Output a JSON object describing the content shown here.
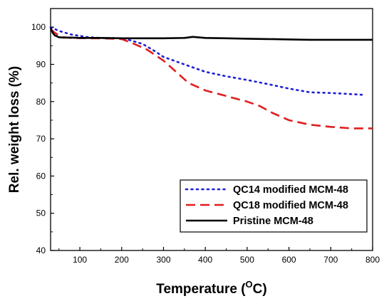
{
  "chart_data": {
    "type": "line",
    "xlabel": "Temperature",
    "xlabel_unit": "(OC)",
    "ylabel": "Rel. weight loss (%)",
    "xlim": [
      30,
      800
    ],
    "ylim": [
      40,
      105
    ],
    "xticks": [
      100,
      200,
      300,
      400,
      500,
      600,
      700,
      800
    ],
    "yticks": [
      40,
      50,
      60,
      70,
      80,
      90,
      100
    ],
    "grid": false,
    "legend_position": "bottom-right",
    "series": [
      {
        "name": "QC14 modified MCM-48",
        "color": "#1f1fd6",
        "line_style": "dotted",
        "x": [
          30,
          50,
          80,
          120,
          150,
          200,
          220,
          250,
          280,
          300,
          350,
          400,
          450,
          500,
          550,
          600,
          650,
          700,
          750,
          780
        ],
        "y": [
          100,
          99,
          98,
          97.3,
          97.1,
          97,
          96.5,
          95.5,
          93.5,
          92,
          90,
          88,
          86.8,
          85.8,
          84.7,
          83.5,
          82.5,
          82.3,
          82,
          81.8
        ]
      },
      {
        "name": "QC18 modified MCM-48",
        "color": "#e01e1e",
        "line_style": "dashed",
        "x": [
          30,
          40,
          50,
          60,
          80,
          120,
          150,
          200,
          230,
          260,
          300,
          330,
          360,
          400,
          450,
          500,
          530,
          560,
          600,
          650,
          700,
          750,
          800
        ],
        "y": [
          99.5,
          98.5,
          97.8,
          97.3,
          97.1,
          97,
          97,
          96.8,
          95.5,
          94,
          91,
          88,
          85,
          83,
          81.5,
          80,
          78.8,
          77,
          75,
          73.8,
          73.2,
          72.8,
          72.8
        ]
      },
      {
        "name": "Pristine MCM-48",
        "color": "#000000",
        "line_style": "solid",
        "x": [
          30,
          35,
          40,
          50,
          60,
          80,
          100,
          150,
          200,
          250,
          300,
          350,
          370,
          400,
          450,
          500,
          550,
          600,
          650,
          700,
          750,
          800
        ],
        "y": [
          99.8,
          98.5,
          97.8,
          97.3,
          97.2,
          97.2,
          97.1,
          97.1,
          97,
          97,
          97,
          97.1,
          97.4,
          97.1,
          97,
          96.9,
          96.8,
          96.7,
          96.6,
          96.6,
          96.6,
          96.6
        ]
      }
    ]
  }
}
